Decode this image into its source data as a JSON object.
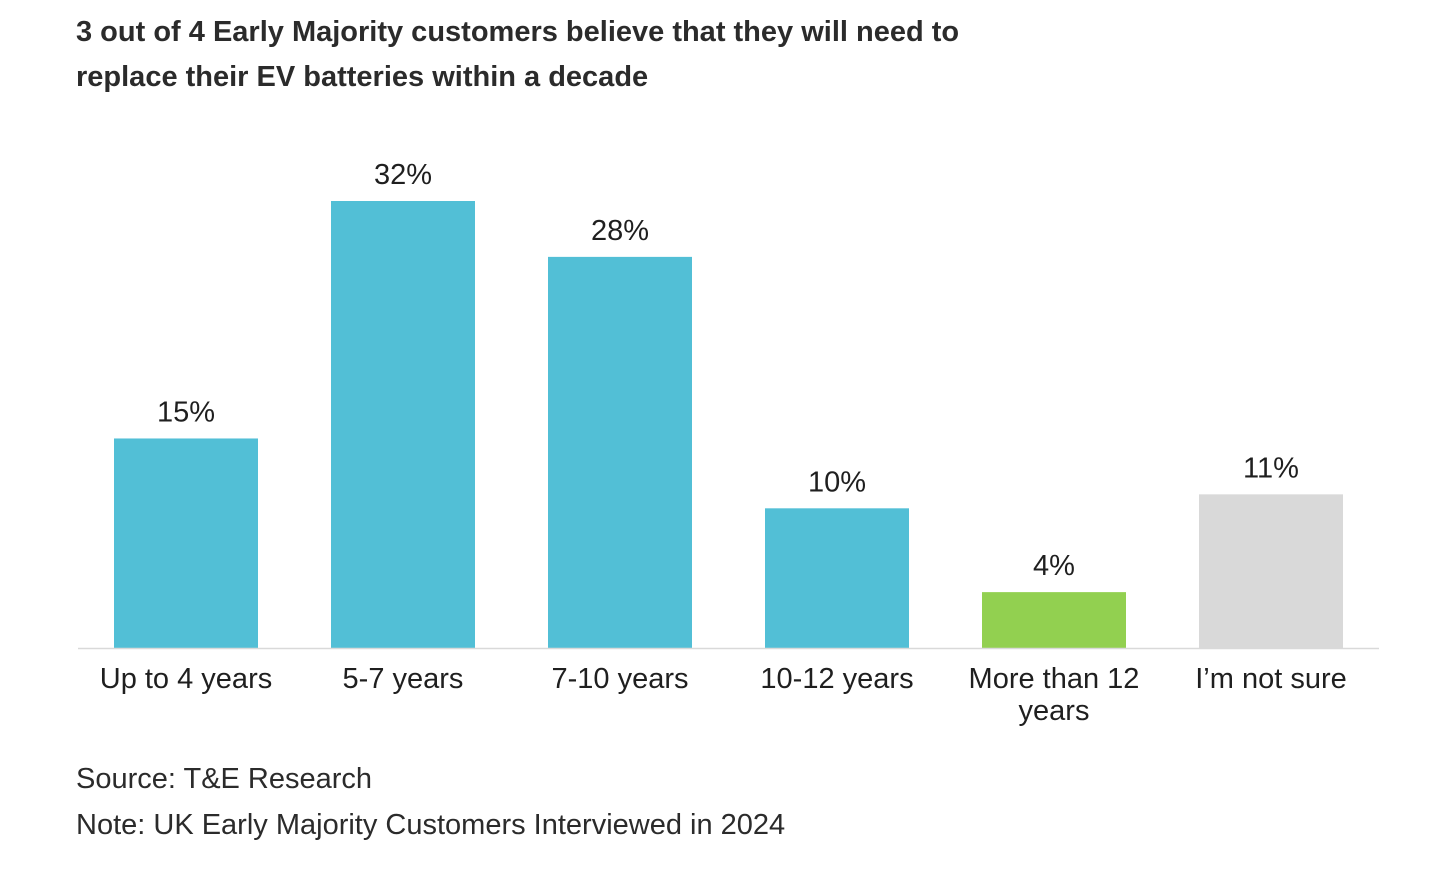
{
  "title_lines": [
    "3 out of 4 Early Majority customers believe that they will need to",
    "replace their EV batteries within a decade"
  ],
  "chart_data": {
    "type": "bar",
    "title": "3 out of 4 Early Majority customers believe that they will need to replace their EV batteries within a decade",
    "categories": [
      [
        "Up to 4 years"
      ],
      [
        "5-7 years"
      ],
      [
        "7-10 years"
      ],
      [
        "10-12 years"
      ],
      [
        "More than 12",
        "years"
      ],
      [
        "I’m not sure"
      ]
    ],
    "values": [
      15,
      32,
      28,
      10,
      4,
      11
    ],
    "value_labels": [
      "15%",
      "32%",
      "28%",
      "10%",
      "4%",
      "11%"
    ],
    "colors": [
      "#52bfd6",
      "#52bfd6",
      "#52bfd6",
      "#52bfd6",
      "#92d050",
      "#d9d9d9"
    ],
    "unit": "%",
    "xlabel": "",
    "ylabel": "",
    "ylim": [
      0,
      32
    ],
    "grid": false,
    "legend": "none"
  },
  "footer": {
    "source": "Source: T&E Research",
    "note": "Note: UK Early Majority Customers Interviewed in 2024"
  }
}
